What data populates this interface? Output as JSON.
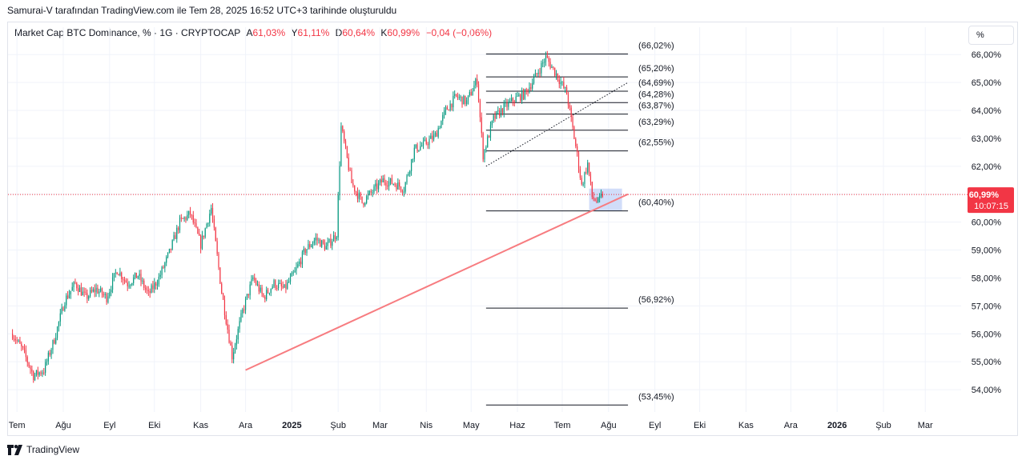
{
  "caption": "Samurai-V tarafından TradingView.com ile Tem 28, 2025 16:52 UTC+3 tarihinde oluşturuldu",
  "legend": {
    "symbol": "Market Cap BTC Dominance, % · 1G · CRYPTOCAP",
    "open_label": "A",
    "open": "61,03%",
    "high_label": "Y",
    "high": "61,11%",
    "low_label": "D",
    "low": "60,64%",
    "close_label": "K",
    "close": "60,99%",
    "change": "−0,04 (−0,06%)"
  },
  "unit_button": "%",
  "footer_brand": "TradingView",
  "colors": {
    "up": "#089981",
    "down": "#f23645",
    "trend": "#f77c80",
    "grid": "#f0f3fa",
    "highlight": "#b2c6f5"
  },
  "chart_data": {
    "type": "line",
    "series": [
      {
        "kind": "candlestick-close",
        "x": [
          "2024-06-28",
          "2024-07-05",
          "2024-07-12",
          "2024-07-19",
          "2024-07-26",
          "2024-08-02",
          "2024-08-09",
          "2024-08-16",
          "2024-08-23",
          "2024-08-30",
          "2024-09-06",
          "2024-09-13",
          "2024-09-20",
          "2024-09-27",
          "2024-10-04",
          "2024-10-11",
          "2024-10-18",
          "2024-10-25",
          "2024-11-01",
          "2024-11-08",
          "2024-11-15",
          "2024-11-22",
          "2024-11-29",
          "2024-12-06",
          "2024-12-13",
          "2024-12-20",
          "2024-12-27",
          "2025-01-03",
          "2025-01-10",
          "2025-01-17",
          "2025-01-24",
          "2025-01-31",
          "2025-02-03",
          "2025-02-10",
          "2025-02-17",
          "2025-02-24",
          "2025-03-03",
          "2025-03-10",
          "2025-03-17",
          "2025-03-24",
          "2025-03-31",
          "2025-04-07",
          "2025-04-14",
          "2025-04-21",
          "2025-04-28",
          "2025-05-05",
          "2025-05-09",
          "2025-05-16",
          "2025-05-23",
          "2025-05-30",
          "2025-06-06",
          "2025-06-13",
          "2025-06-20",
          "2025-06-27",
          "2025-07-04",
          "2025-07-11",
          "2025-07-14",
          "2025-07-18",
          "2025-07-21",
          "2025-07-25",
          "2025-07-28"
        ],
        "y": [
          56.0,
          55.4,
          54.5,
          54.7,
          55.8,
          57.2,
          57.8,
          57.3,
          57.6,
          57.3,
          58.3,
          57.8,
          58.1,
          57.4,
          58.0,
          58.9,
          60.0,
          60.3,
          59.2,
          60.5,
          57.5,
          55.2,
          56.8,
          58.0,
          57.3,
          57.8,
          57.6,
          58.2,
          59.0,
          59.4,
          59.1,
          59.6,
          63.4,
          61.4,
          60.7,
          61.1,
          61.5,
          61.4,
          61.2,
          62.6,
          62.8,
          63.1,
          64.0,
          64.5,
          64.3,
          65.1,
          62.4,
          63.7,
          64.1,
          64.4,
          64.6,
          65.2,
          65.9,
          65.3,
          64.6,
          62.4,
          61.3,
          62.1,
          60.9,
          60.7,
          60.99
        ]
      }
    ],
    "current_price_label": "60,99%",
    "countdown": "10:07:15",
    "y_ticks": [
      "54,00%",
      "55,00%",
      "56,00%",
      "57,00%",
      "58,00%",
      "59,00%",
      "60,00%",
      "61,00%",
      "62,00%",
      "63,00%",
      "64,00%",
      "65,00%",
      "66,00%"
    ],
    "y_tick_values": [
      54,
      55,
      56,
      57,
      58,
      59,
      60,
      61,
      62,
      63,
      64,
      65,
      66
    ],
    "ylim": [
      53.2,
      66.35
    ],
    "x_ticks": [
      {
        "label": "Tem",
        "date": "2024-07-01",
        "bold": false
      },
      {
        "label": "Ağu",
        "date": "2024-08-01",
        "bold": false
      },
      {
        "label": "Eyl",
        "date": "2024-09-01",
        "bold": false
      },
      {
        "label": "Eki",
        "date": "2024-10-01",
        "bold": false
      },
      {
        "label": "Kas",
        "date": "2024-11-01",
        "bold": false
      },
      {
        "label": "Ara",
        "date": "2024-12-01",
        "bold": false
      },
      {
        "label": "2025",
        "date": "2025-01-01",
        "bold": true
      },
      {
        "label": "Şub",
        "date": "2025-02-01",
        "bold": false
      },
      {
        "label": "Mar",
        "date": "2025-03-01",
        "bold": false
      },
      {
        "label": "Nis",
        "date": "2025-04-01",
        "bold": false
      },
      {
        "label": "May",
        "date": "2025-05-01",
        "bold": false
      },
      {
        "label": "Haz",
        "date": "2025-06-01",
        "bold": false
      },
      {
        "label": "Tem",
        "date": "2025-07-01",
        "bold": false
      },
      {
        "label": "Ağu",
        "date": "2025-08-01",
        "bold": false
      },
      {
        "label": "Eyl",
        "date": "2025-09-01",
        "bold": false
      },
      {
        "label": "Eki",
        "date": "2025-10-01",
        "bold": false
      },
      {
        "label": "Kas",
        "date": "2025-11-01",
        "bold": false
      },
      {
        "label": "Ara",
        "date": "2025-12-01",
        "bold": false
      },
      {
        "label": "2026",
        "date": "2026-01-01",
        "bold": true
      },
      {
        "label": "Şub",
        "date": "2026-02-01",
        "bold": false
      },
      {
        "label": "Mar",
        "date": "2026-03-01",
        "bold": false
      }
    ],
    "fib_levels": [
      {
        "label": "(66,02%)",
        "value": 66.02
      },
      {
        "label": "(65,20%)",
        "value": 65.2
      },
      {
        "label": "(64,69%)",
        "value": 64.69
      },
      {
        "label": "(64,28%)",
        "value": 64.28
      },
      {
        "label": "(63,87%)",
        "value": 63.87
      },
      {
        "label": "(63,29%)",
        "value": 63.29
      },
      {
        "label": "(62,55%)",
        "value": 62.55
      },
      {
        "label": "(60,40%)",
        "value": 60.4
      },
      {
        "label": "(56,92%)",
        "value": 56.92
      },
      {
        "label": "(53,45%)",
        "value": 53.45
      }
    ],
    "fib_range": {
      "from": "2025-05-11",
      "to": "2025-08-14"
    },
    "fib_anchor_line": {
      "from": {
        "date": "2025-05-11",
        "value": 62.0
      },
      "to": {
        "date": "2025-08-14",
        "value": 65.0
      }
    },
    "trendline": {
      "from": {
        "date": "2024-12-01",
        "value": 54.7
      },
      "to": {
        "date": "2025-08-14",
        "value": 61.0
      }
    },
    "highlight_box": {
      "from": "2025-07-19",
      "to": "2025-08-10",
      "top": 61.2,
      "bottom": 60.4
    },
    "grid": true
  }
}
